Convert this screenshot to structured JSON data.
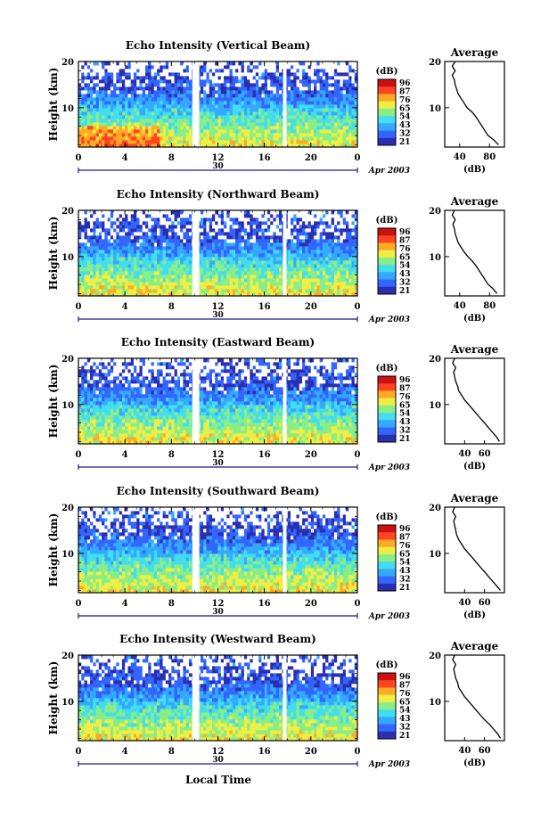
{
  "figure": {
    "xlabel": "Local Time",
    "date_label": "Apr 2003",
    "date_day": "30",
    "colorbar_title": "(dB)",
    "colorbar_ticks": [
      "96",
      "87",
      "76",
      "65",
      "54",
      "43",
      "32",
      "21"
    ],
    "avg_title": "Average",
    "avg_xlabel": "(dB)",
    "colormap": [
      "#2a2fb0",
      "#3366ff",
      "#33aaff",
      "#44ddee",
      "#88ee88",
      "#eeee44",
      "#ffaa22",
      "#ff4422",
      "#cc1111"
    ],
    "gap_color": "#ffffff"
  },
  "chart_data": [
    {
      "type": "heatmap",
      "title": "Echo Intensity (Vertical Beam)",
      "ylabel": "Height (km)",
      "x_ticks": [
        "0",
        "4",
        "8",
        "12",
        "16",
        "20",
        "0"
      ],
      "y_ticks": [
        "20",
        "10"
      ],
      "xlim": [
        0,
        24
      ],
      "ylim": [
        1.5,
        20
      ],
      "data_gaps_hours": [
        [
          9.8,
          10.4
        ],
        [
          17.6,
          17.9
        ]
      ],
      "clim_db": [
        21,
        96
      ],
      "profile": {
        "x_ticks": [
          "40",
          "80"
        ],
        "y_ticks": [
          "20",
          "10"
        ],
        "xlim": [
          20,
          100
        ],
        "height_km": [
          2,
          3,
          4,
          5,
          6,
          7,
          8,
          9,
          10,
          11,
          12,
          13,
          14,
          15,
          16,
          17,
          18,
          19,
          20
        ],
        "mean_db": [
          92,
          86,
          78,
          74,
          70,
          66,
          62,
          57,
          50,
          46,
          42,
          38,
          36,
          34,
          33,
          30,
          34,
          30,
          34
        ]
      }
    },
    {
      "type": "heatmap",
      "title": "Echo Intensity (Northward Beam)",
      "ylabel": "Height (km)",
      "x_ticks": [
        "0",
        "4",
        "8",
        "12",
        "16",
        "20",
        "0"
      ],
      "y_ticks": [
        "20",
        "10"
      ],
      "xlim": [
        0,
        24
      ],
      "ylim": [
        1.5,
        20
      ],
      "data_gaps_hours": [
        [
          9.8,
          10.4
        ],
        [
          17.6,
          17.9
        ]
      ],
      "clim_db": [
        21,
        96
      ],
      "profile": {
        "x_ticks": [
          "40",
          "80"
        ],
        "y_ticks": [
          "20",
          "10"
        ],
        "xlim": [
          20,
          100
        ],
        "height_km": [
          2,
          3,
          4,
          5,
          6,
          7,
          8,
          9,
          10,
          11,
          12,
          13,
          14,
          15,
          16,
          17,
          18,
          19,
          20
        ],
        "mean_db": [
          90,
          85,
          78,
          74,
          70,
          66,
          62,
          57,
          51,
          46,
          42,
          38,
          36,
          34,
          33,
          31,
          34,
          30,
          33
        ]
      }
    },
    {
      "type": "heatmap",
      "title": "Echo Intensity (Eastward Beam)",
      "ylabel": "Height (km)",
      "x_ticks": [
        "0",
        "4",
        "8",
        "12",
        "16",
        "20",
        "0"
      ],
      "y_ticks": [
        "20",
        "10"
      ],
      "xlim": [
        0,
        24
      ],
      "ylim": [
        1.5,
        20
      ],
      "data_gaps_hours": [
        [
          9.8,
          10.4
        ],
        [
          17.6,
          17.9
        ]
      ],
      "clim_db": [
        21,
        96
      ],
      "profile": {
        "x_ticks": [
          "40",
          "60"
        ],
        "y_ticks": [
          "20",
          "10"
        ],
        "xlim": [
          20,
          80
        ],
        "height_km": [
          2,
          3,
          4,
          5,
          6,
          7,
          8,
          9,
          10,
          11,
          12,
          13,
          14,
          15,
          16,
          17,
          18,
          19,
          20
        ],
        "mean_db": [
          75,
          72,
          68,
          64,
          60,
          56,
          52,
          48,
          44,
          40,
          37,
          34,
          33,
          31,
          30,
          29,
          31,
          28,
          30
        ]
      }
    },
    {
      "type": "heatmap",
      "title": "Echo Intensity (Southward Beam)",
      "ylabel": "Height (km)",
      "x_ticks": [
        "0",
        "4",
        "8",
        "12",
        "16",
        "20",
        "0"
      ],
      "y_ticks": [
        "20",
        "10"
      ],
      "xlim": [
        0,
        24
      ],
      "ylim": [
        1.5,
        20
      ],
      "data_gaps_hours": [
        [
          9.8,
          10.4
        ],
        [
          17.6,
          17.9
        ]
      ],
      "clim_db": [
        21,
        96
      ],
      "profile": {
        "x_ticks": [
          "40",
          "60"
        ],
        "y_ticks": [
          "20",
          "10"
        ],
        "xlim": [
          20,
          80
        ],
        "height_km": [
          2,
          3,
          4,
          5,
          6,
          7,
          8,
          9,
          10,
          11,
          12,
          13,
          14,
          15,
          16,
          17,
          18,
          19,
          20
        ],
        "mean_db": [
          76,
          72,
          68,
          64,
          60,
          56,
          52,
          48,
          44,
          40,
          37,
          34,
          32,
          31,
          30,
          29,
          31,
          28,
          30
        ]
      }
    },
    {
      "type": "heatmap",
      "title": "Echo Intensity (Westward Beam)",
      "ylabel": "Height (km)",
      "x_ticks": [
        "0",
        "4",
        "8",
        "12",
        "16",
        "20",
        "0"
      ],
      "y_ticks": [
        "20",
        "10"
      ],
      "xlim": [
        0,
        24
      ],
      "ylim": [
        1.5,
        20
      ],
      "data_gaps_hours": [
        [
          9.8,
          10.4
        ],
        [
          17.6,
          17.9
        ]
      ],
      "clim_db": [
        21,
        96
      ],
      "profile": {
        "x_ticks": [
          "40",
          "60"
        ],
        "y_ticks": [
          "20",
          "10"
        ],
        "xlim": [
          20,
          80
        ],
        "height_km": [
          2,
          3,
          4,
          5,
          6,
          7,
          8,
          9,
          10,
          11,
          12,
          13,
          14,
          15,
          16,
          17,
          18,
          19,
          20
        ],
        "mean_db": [
          76,
          73,
          69,
          65,
          60,
          56,
          52,
          48,
          44,
          40,
          37,
          34,
          33,
          31,
          30,
          29,
          31,
          28,
          30
        ]
      }
    }
  ]
}
